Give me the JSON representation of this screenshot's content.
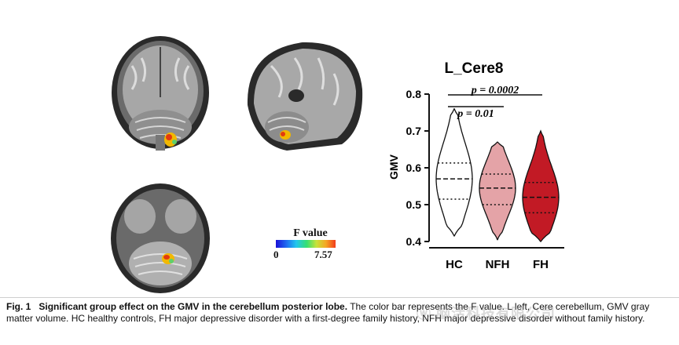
{
  "colorbar": {
    "title": "F value",
    "min": "0",
    "max": "7.57"
  },
  "caption": {
    "label": "Fig. 1",
    "bold_title": "Significant group effect on the GMV in the cerebellum posterior lobe.",
    "text": " The color bar represents the F value. L left, Cere cerebellum, GMV gray matter volume. HC healthy controls, FH major depressive disorder with a first-degree family history, NFH major depressive disorder without family history."
  },
  "watermark": "ⓦ 脑活科技有限公司",
  "chart_data": {
    "type": "violin",
    "title": "L_Cere8",
    "ylabel": "GMV",
    "ylim": [
      0.4,
      0.8
    ],
    "yticks": [
      "0.4",
      "0.5",
      "0.6",
      "0.7",
      "0.8"
    ],
    "categories": [
      "HC",
      "NFH",
      "FH"
    ],
    "series": [
      {
        "name": "HC",
        "color": "#ffffff",
        "min": 0.415,
        "max": 0.76,
        "q1": 0.515,
        "median": 0.57,
        "q3": 0.613
      },
      {
        "name": "NFH",
        "color": "#e4a3a7",
        "min": 0.405,
        "max": 0.67,
        "q1": 0.5,
        "median": 0.545,
        "q3": 0.583
      },
      {
        "name": "FH",
        "color": "#c21a25",
        "min": 0.4,
        "max": 0.7,
        "q1": 0.478,
        "median": 0.52,
        "q3": 0.56
      }
    ],
    "annotations": [
      {
        "text": "p = 0.0002",
        "from": "HC",
        "to": "FH"
      },
      {
        "text": "p = 0.01",
        "from": "HC",
        "to": "NFH"
      }
    ]
  }
}
